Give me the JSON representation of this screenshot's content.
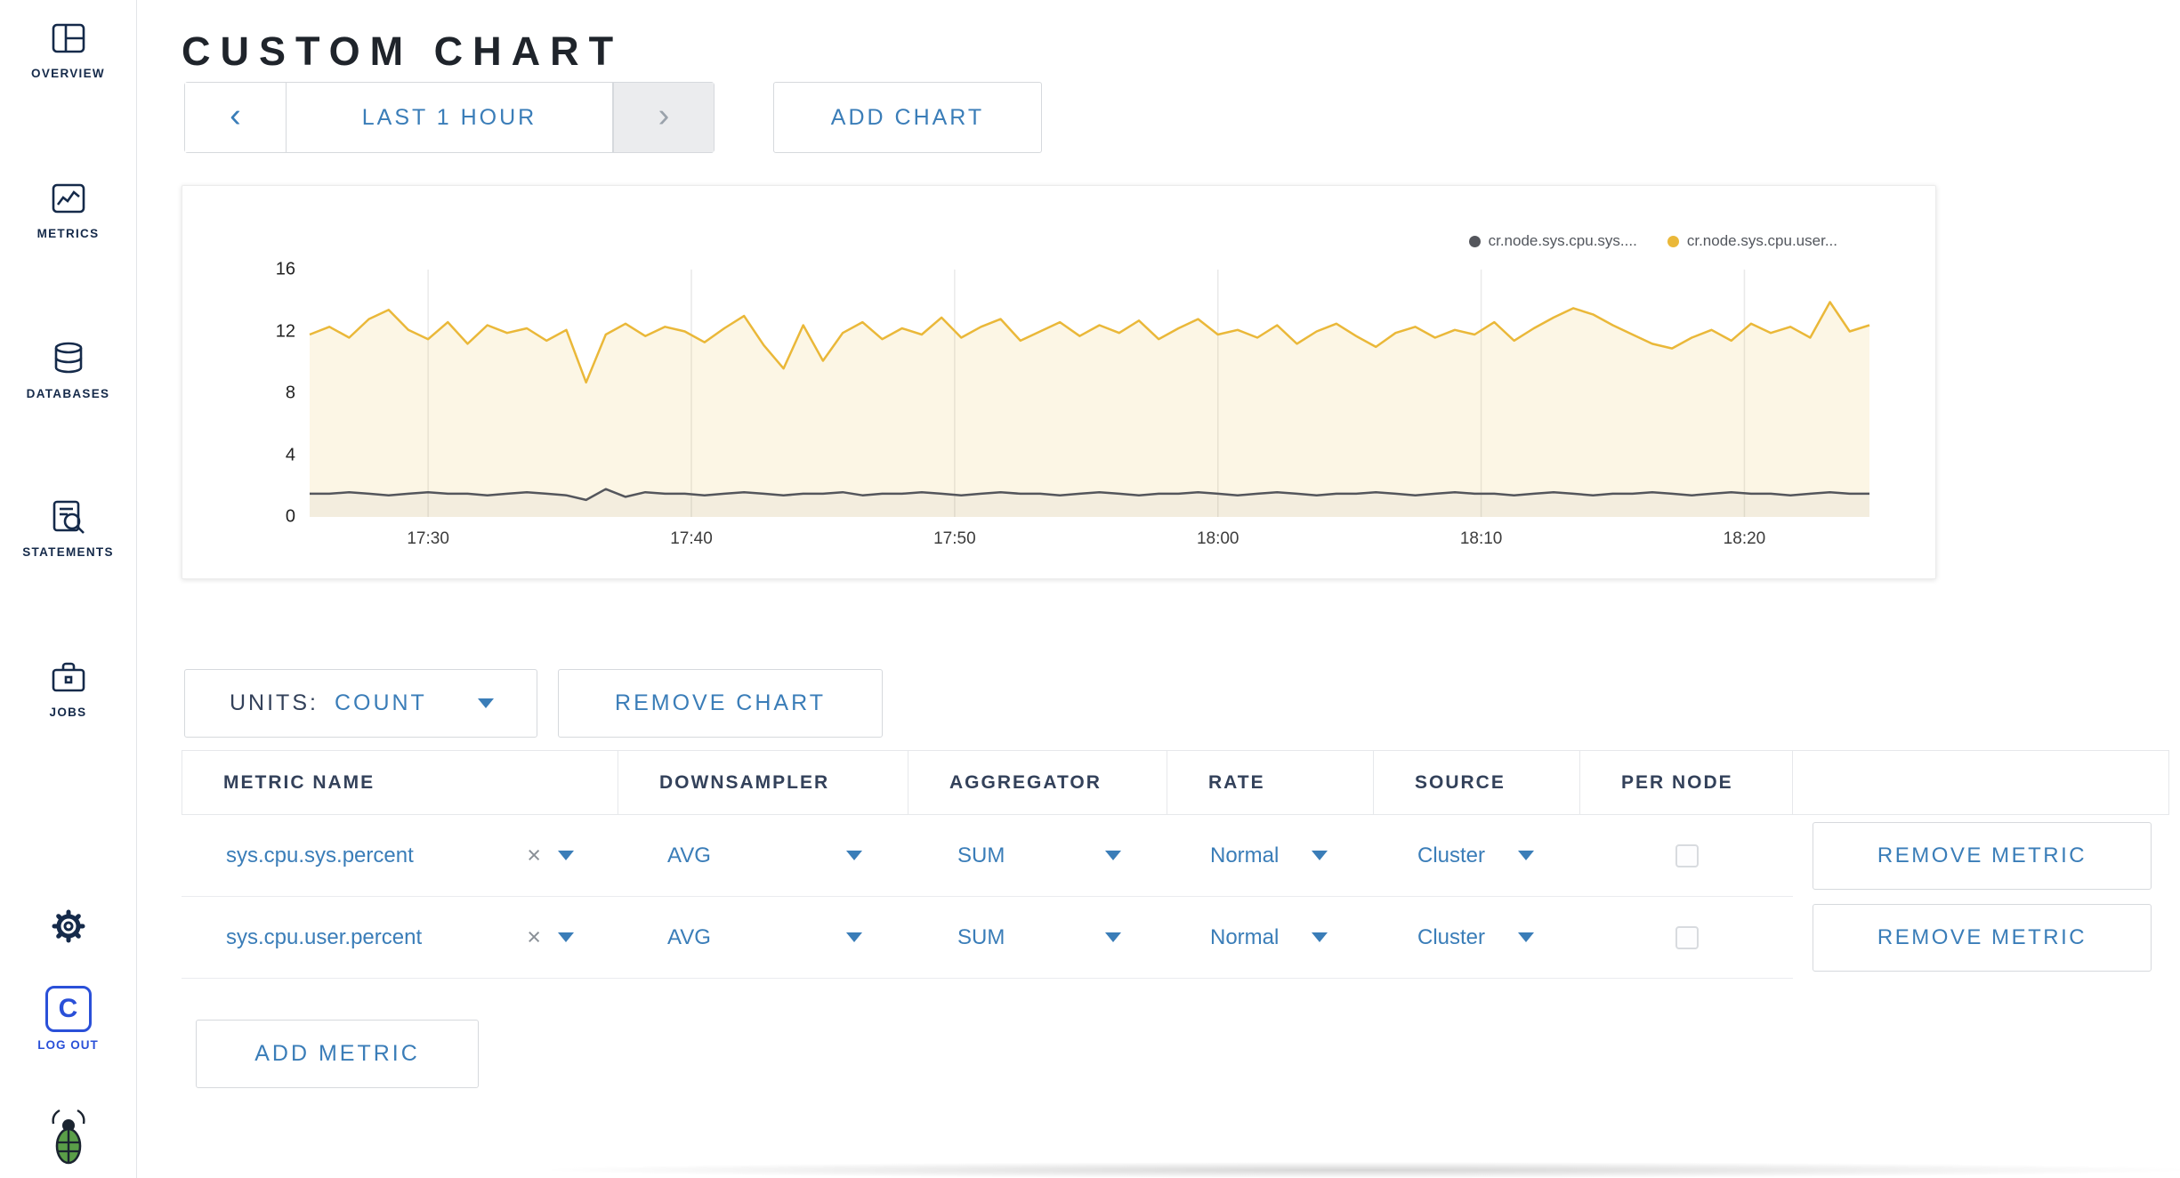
{
  "colors": {
    "accent": "#3a7db8",
    "logout_blue": "#2a50d8",
    "title": "#1f242b",
    "header_text": "#33415a",
    "series_sys": "#54565c",
    "series_user": "#eab839"
  },
  "sidebar": {
    "items": [
      {
        "label": "OVERVIEW"
      },
      {
        "label": "METRICS"
      },
      {
        "label": "DATABASES"
      },
      {
        "label": "STATEMENTS"
      },
      {
        "label": "JOBS"
      }
    ],
    "logo_letter": "C",
    "logout_label": "LOG OUT"
  },
  "header": {
    "title": "CUSTOM CHART"
  },
  "toolbar": {
    "prev_glyph": "‹",
    "time_window": "LAST 1 HOUR",
    "next_glyph": "›",
    "add_chart": "ADD CHART"
  },
  "chart_data": {
    "type": "line",
    "title": "",
    "xlabel": "",
    "ylabel": "",
    "ylim": [
      0,
      16
    ],
    "y_ticks": [
      0,
      4,
      8,
      12,
      16
    ],
    "x_ticks": [
      "17:30",
      "17:40",
      "17:50",
      "18:00",
      "18:10",
      "18:20"
    ],
    "x_range": [
      "17:25:30",
      "18:24:45"
    ],
    "grid": "vertical",
    "legend_position": "top-right",
    "series": [
      {
        "name": "cr.node.sys.cpu.sys....",
        "color": "#54565c",
        "fill": "rgba(84,86,92,0.05)",
        "values": [
          1.5,
          1.5,
          1.6,
          1.5,
          1.4,
          1.5,
          1.6,
          1.5,
          1.5,
          1.4,
          1.5,
          1.6,
          1.5,
          1.4,
          1.1,
          1.8,
          1.3,
          1.6,
          1.5,
          1.5,
          1.4,
          1.5,
          1.6,
          1.5,
          1.4,
          1.5,
          1.5,
          1.6,
          1.4,
          1.5,
          1.5,
          1.6,
          1.5,
          1.4,
          1.5,
          1.6,
          1.5,
          1.5,
          1.4,
          1.5,
          1.6,
          1.5,
          1.4,
          1.5,
          1.5,
          1.6,
          1.5,
          1.4,
          1.5,
          1.6,
          1.5,
          1.4,
          1.5,
          1.5,
          1.6,
          1.5,
          1.4,
          1.5,
          1.6,
          1.5,
          1.5,
          1.4,
          1.5,
          1.6,
          1.5,
          1.4,
          1.5,
          1.5,
          1.6,
          1.5,
          1.4,
          1.5,
          1.6,
          1.5,
          1.5,
          1.4,
          1.5,
          1.6,
          1.5,
          1.5
        ]
      },
      {
        "name": "cr.node.sys.cpu.user...",
        "color": "#eab839",
        "fill": "rgba(234,184,57,0.13)",
        "values": [
          11.8,
          12.3,
          11.6,
          12.8,
          13.4,
          12.1,
          11.5,
          12.6,
          11.2,
          12.4,
          11.9,
          12.2,
          11.4,
          12.1,
          8.7,
          11.8,
          12.5,
          11.7,
          12.3,
          12.0,
          11.3,
          12.2,
          13.0,
          11.1,
          9.6,
          12.4,
          10.1,
          11.9,
          12.6,
          11.5,
          12.2,
          11.8,
          12.9,
          11.6,
          12.3,
          12.8,
          11.4,
          12.0,
          12.6,
          11.7,
          12.4,
          11.9,
          12.7,
          11.5,
          12.2,
          12.8,
          11.8,
          12.1,
          11.6,
          12.4,
          11.2,
          12.0,
          12.5,
          11.7,
          11.0,
          11.9,
          12.3,
          11.6,
          12.1,
          11.8,
          12.6,
          11.4,
          12.2,
          12.9,
          13.5,
          13.1,
          12.4,
          11.8,
          11.2,
          10.9,
          11.6,
          12.1,
          11.4,
          12.5,
          11.9,
          12.3,
          11.6,
          13.9,
          12.0,
          12.4
        ]
      }
    ]
  },
  "chart_controls": {
    "units_label": "UNITS:",
    "units_value": "COUNT",
    "remove_chart": "REMOVE CHART"
  },
  "metrics_table": {
    "headers": [
      "METRIC NAME",
      "DOWNSAMPLER",
      "AGGREGATOR",
      "RATE",
      "SOURCE",
      "PER NODE"
    ],
    "clear_glyph": "×",
    "rows": [
      {
        "metric": "sys.cpu.sys.percent",
        "downsampler": "AVG",
        "aggregator": "SUM",
        "rate": "Normal",
        "source": "Cluster",
        "per_node": false,
        "remove_label": "REMOVE METRIC"
      },
      {
        "metric": "sys.cpu.user.percent",
        "downsampler": "AVG",
        "aggregator": "SUM",
        "rate": "Normal",
        "source": "Cluster",
        "per_node": false,
        "remove_label": "REMOVE METRIC"
      }
    ],
    "add_metric": "ADD METRIC"
  }
}
